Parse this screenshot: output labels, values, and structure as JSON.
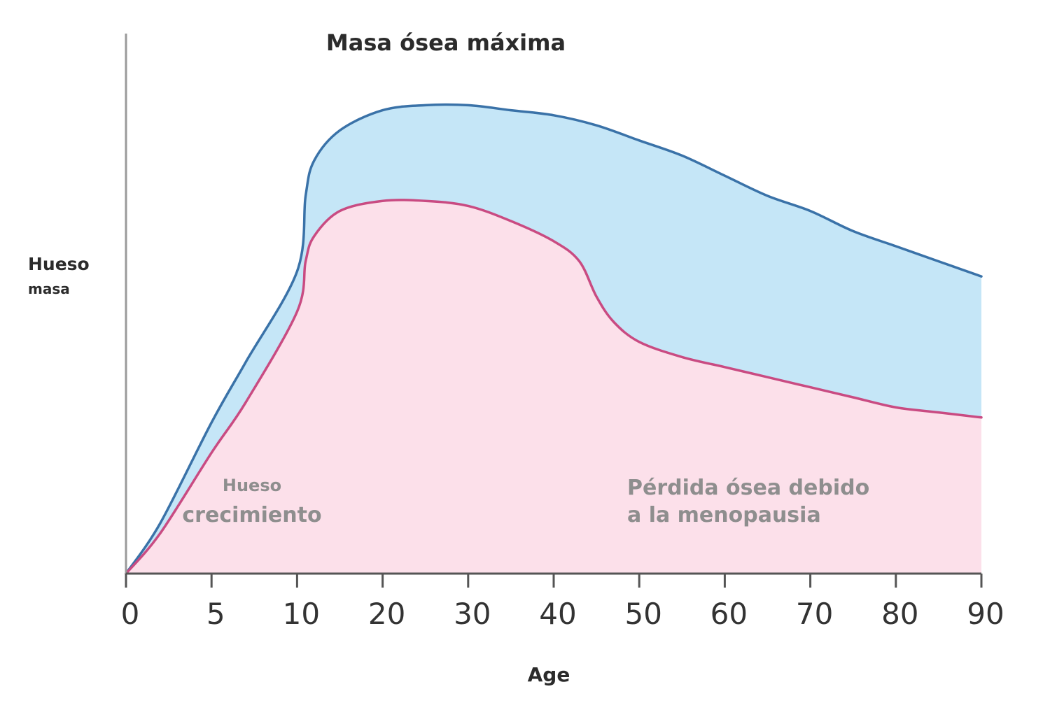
{
  "chart_data": {
    "type": "area",
    "title": "Masa ósea máxima",
    "xlabel": "Age",
    "ylabel": {
      "line1": "Hueso",
      "line2": "masa"
    },
    "x_ticks": [
      0,
      5,
      10,
      20,
      30,
      40,
      50,
      60,
      70,
      80,
      90
    ],
    "ylim": [
      0,
      100
    ],
    "grid": false,
    "legend": "none",
    "series": [
      {
        "color": "#3a72a8",
        "fill": "#c5e6f7",
        "points": [
          [
            0,
            0
          ],
          [
            2,
            10
          ],
          [
            5,
            30
          ],
          [
            7,
            42
          ],
          [
            10,
            60
          ],
          [
            11,
            75
          ],
          [
            12,
            82
          ],
          [
            15,
            88
          ],
          [
            20,
            92
          ],
          [
            25,
            93
          ],
          [
            30,
            93
          ],
          [
            35,
            92
          ],
          [
            40,
            91
          ],
          [
            45,
            89
          ],
          [
            50,
            86
          ],
          [
            55,
            83
          ],
          [
            60,
            79
          ],
          [
            65,
            75
          ],
          [
            70,
            72
          ],
          [
            75,
            68
          ],
          [
            80,
            65
          ],
          [
            85,
            62
          ],
          [
            90,
            59
          ]
        ]
      },
      {
        "color": "#c94b82",
        "fill": "#fce0ea",
        "points": [
          [
            0,
            0
          ],
          [
            2,
            8
          ],
          [
            5,
            24
          ],
          [
            7,
            34
          ],
          [
            10,
            52
          ],
          [
            11,
            62
          ],
          [
            12,
            67
          ],
          [
            15,
            72
          ],
          [
            20,
            74
          ],
          [
            25,
            74
          ],
          [
            30,
            73
          ],
          [
            35,
            70
          ],
          [
            40,
            66
          ],
          [
            43,
            62
          ],
          [
            45,
            55
          ],
          [
            47,
            50
          ],
          [
            50,
            46
          ],
          [
            55,
            43
          ],
          [
            60,
            41
          ],
          [
            65,
            39
          ],
          [
            70,
            37
          ],
          [
            75,
            35
          ],
          [
            80,
            33
          ],
          [
            85,
            32
          ],
          [
            90,
            31
          ]
        ]
      }
    ],
    "annotations": [
      {
        "name": "bone-growth",
        "line1": "Hueso",
        "line2": "crecimiento"
      },
      {
        "name": "menopause-loss",
        "line1": "Pérdida ósea debido",
        "line2": "a la menopausia"
      }
    ]
  }
}
